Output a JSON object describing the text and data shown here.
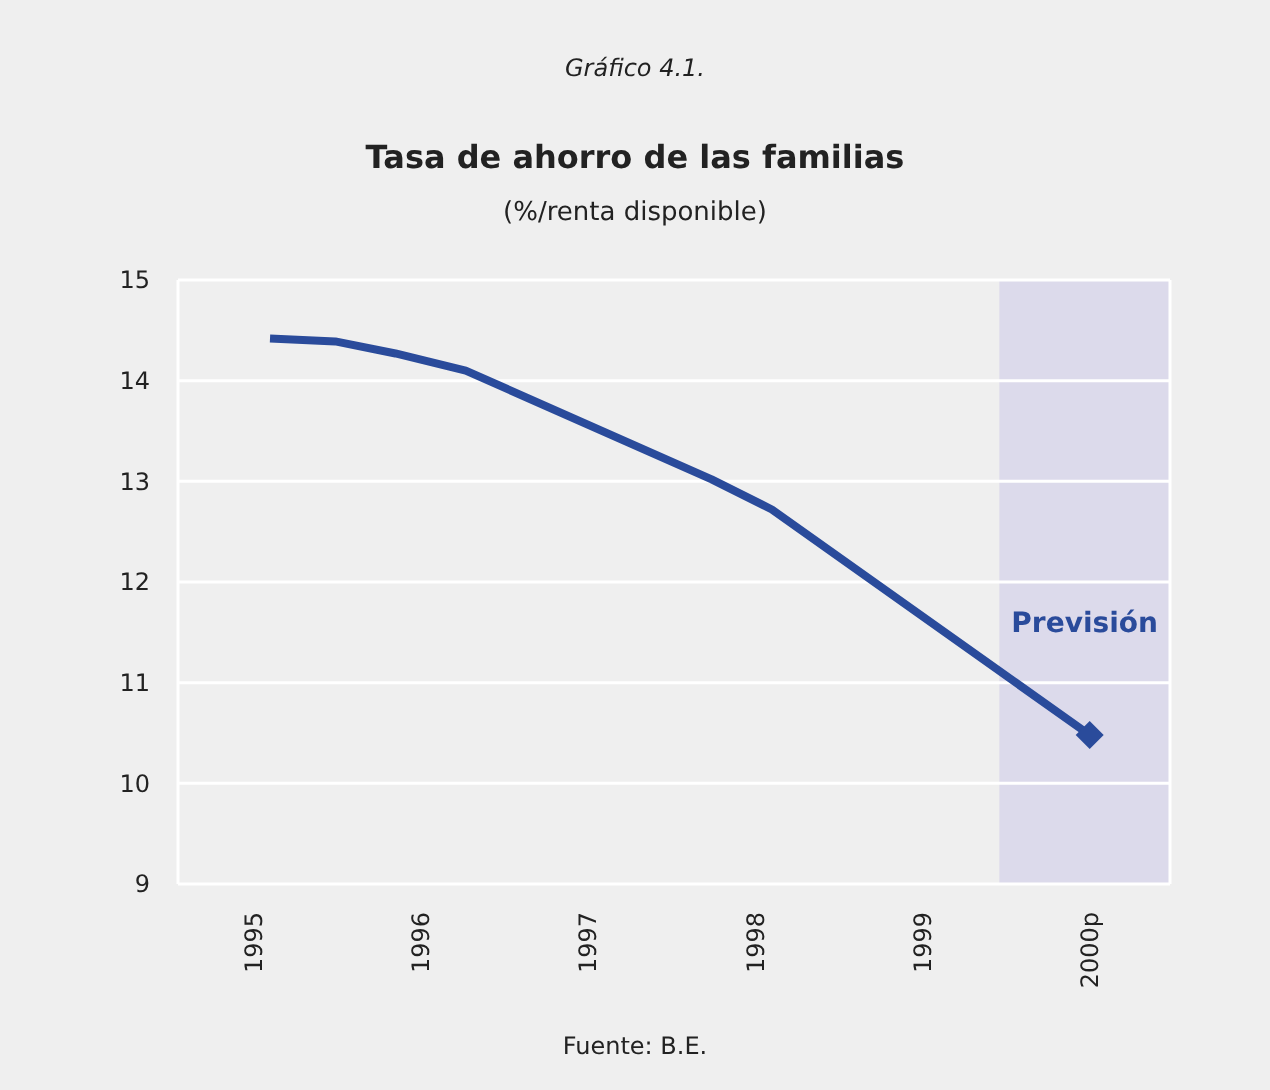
{
  "chart_data": {
    "type": "line",
    "title": "Tasa de ahorro de las familias",
    "subtitle": "(%/renta disponible)",
    "annotations": [
      "Gráfico 4.1.",
      "Fuente: B.E."
    ],
    "series": [
      {
        "color": "#2a4b9b",
        "x": [
          1995.1,
          1995.49,
          1995.85,
          1996.27,
          1997.74,
          1998.1,
          2000
        ],
        "values": [
          14.42,
          14.39,
          14.27,
          14.1,
          13.02,
          12.72,
          10.48
        ],
        "marker": "none"
      },
      {
        "type": "scatter",
        "color": "#2a4b9b",
        "x": [
          2000
        ],
        "values": [
          10.48
        ],
        "marker": "diamond"
      }
    ],
    "xlim": [
      1994.55,
      2000.48
    ],
    "xticks": [
      1995,
      1996,
      1997,
      1998,
      1999,
      {
        "value": 2000,
        "label": "2000p"
      }
    ],
    "ylim": [
      9,
      15
    ],
    "yticks": [
      9,
      10,
      11,
      12,
      13,
      14,
      15
    ],
    "grid": "y",
    "bands": [
      {
        "axis": "x",
        "from": 1999.46,
        "to": 2000.48,
        "label": "Previsión",
        "color": "#dcdaeb"
      }
    ]
  }
}
